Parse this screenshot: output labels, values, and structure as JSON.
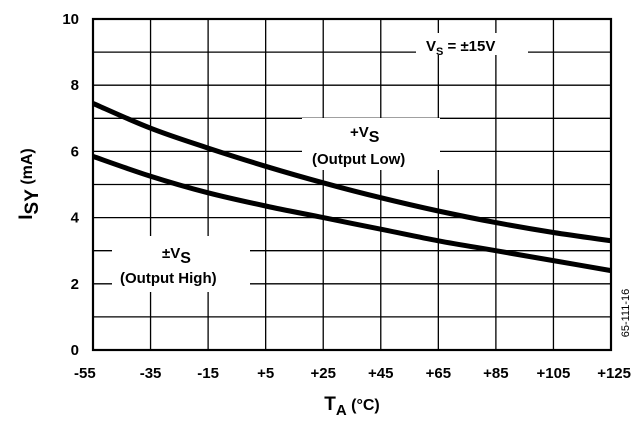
{
  "chart_data": {
    "type": "line",
    "xlabel_main": "T",
    "xlabel_sub": "A",
    "xlabel_unit": " (°C)",
    "ylabel_main": "I",
    "ylabel_sub": "SY",
    "ylabel_unit": " (mA)",
    "xlim": [
      -55,
      125
    ],
    "ylim": [
      0,
      10
    ],
    "x_tick_values": [
      -55,
      -35,
      -15,
      5,
      25,
      45,
      65,
      85,
      105,
      125
    ],
    "x_tick_labels": [
      "-55",
      "-35",
      "-15",
      "+5",
      "+25",
      "+45",
      "+65",
      "+85",
      "+105",
      "+125"
    ],
    "y_tick_values": [
      0,
      2,
      4,
      6,
      8,
      10
    ],
    "y_tick_labels": [
      "0",
      "2",
      "4",
      "6",
      "8",
      "10"
    ],
    "grid": true,
    "x": [
      -55,
      -35,
      -15,
      5,
      25,
      45,
      65,
      85,
      105,
      125
    ],
    "series": [
      {
        "values": [
          7.45,
          6.7,
          6.1,
          5.55,
          5.05,
          4.6,
          4.2,
          3.85,
          3.55,
          3.3
        ]
      },
      {
        "values": [
          5.85,
          5.25,
          4.75,
          4.35,
          4.0,
          3.65,
          3.3,
          3.0,
          2.7,
          2.4
        ]
      }
    ],
    "annotations": [
      {
        "main": "V",
        "sub": "S",
        "tail": " = ±15V"
      },
      {
        "main": "+V",
        "sub": "S",
        "line2": "(Output Low)"
      },
      {
        "main": "±V",
        "sub": "S",
        "line2": "(Output High)"
      }
    ],
    "figure_id": "65-111-16",
    "colors": {
      "line": "#000000",
      "grid": "#000000",
      "background": "#ffffff"
    }
  }
}
